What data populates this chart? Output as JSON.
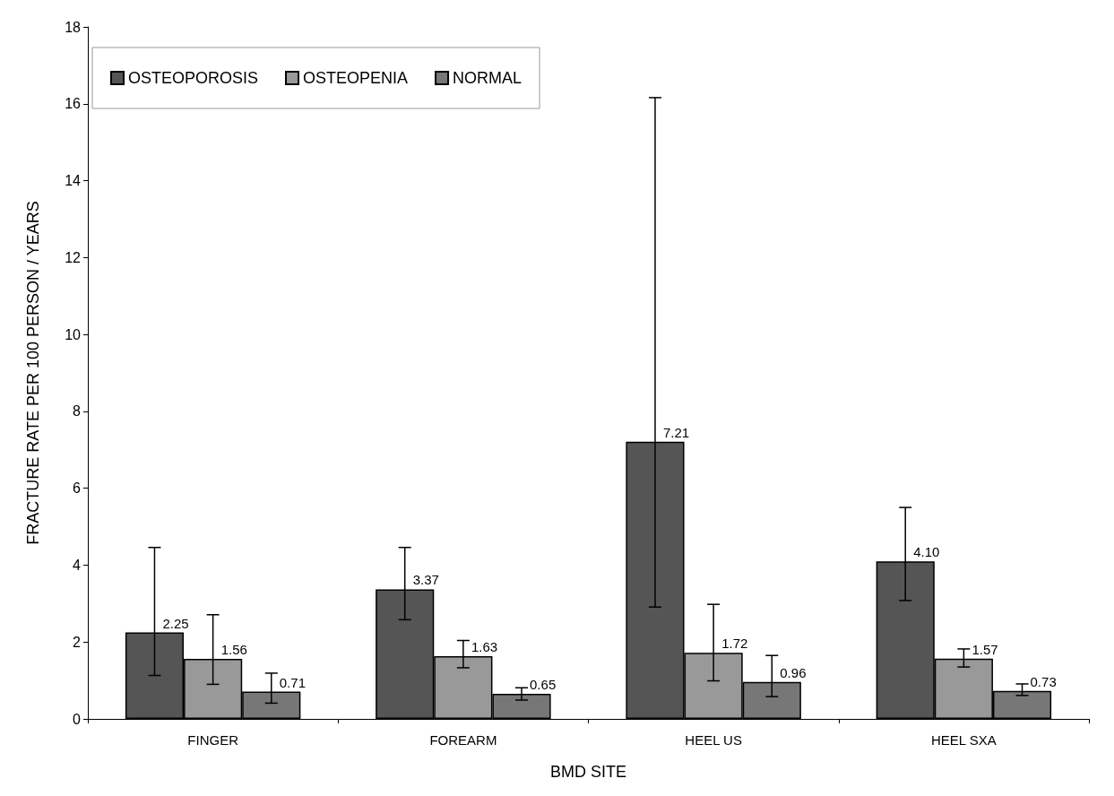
{
  "chart_data": {
    "type": "bar",
    "xlabel": "BMD SITE",
    "ylabel": "FRACTURE RATE PER 100 PERSON / YEARS",
    "categories": [
      "FINGER",
      "FOREARM",
      "HEEL US",
      "HEEL SXA"
    ],
    "series": [
      {
        "name": "OSTEOPOROSIS",
        "color": "#555555",
        "values": [
          2.25,
          3.37,
          7.21,
          4.1
        ],
        "value_labels": [
          "2.25",
          "3.37",
          "7.21",
          "4.10"
        ],
        "errors": [
          [
            1.13,
            4.46
          ],
          [
            2.58,
            4.46
          ],
          [
            2.91,
            16.16
          ],
          [
            3.08,
            5.5
          ]
        ]
      },
      {
        "name": "OSTEOPENIA",
        "color": "#999999",
        "values": [
          1.56,
          1.63,
          1.72,
          1.57
        ],
        "value_labels": [
          "1.56",
          "1.63",
          "1.72",
          "1.57"
        ],
        "errors": [
          [
            0.9,
            2.71
          ],
          [
            1.33,
            2.04
          ],
          [
            0.99,
            2.98
          ],
          [
            1.35,
            1.82
          ]
        ]
      },
      {
        "name": "NORMAL",
        "color": "#777777",
        "values": [
          0.71,
          0.65,
          0.96,
          0.73
        ],
        "value_labels": [
          "0.71",
          "0.65",
          "0.96",
          "0.73"
        ],
        "errors": [
          [
            0.41,
            1.19
          ],
          [
            0.49,
            0.81
          ],
          [
            0.58,
            1.65
          ],
          [
            0.61,
            0.91
          ]
        ]
      }
    ],
    "ylim": [
      0,
      18
    ],
    "yticks": [
      0,
      2,
      4,
      6,
      8,
      10,
      12,
      14,
      16,
      18
    ],
    "grid": false,
    "legend": "top left"
  }
}
